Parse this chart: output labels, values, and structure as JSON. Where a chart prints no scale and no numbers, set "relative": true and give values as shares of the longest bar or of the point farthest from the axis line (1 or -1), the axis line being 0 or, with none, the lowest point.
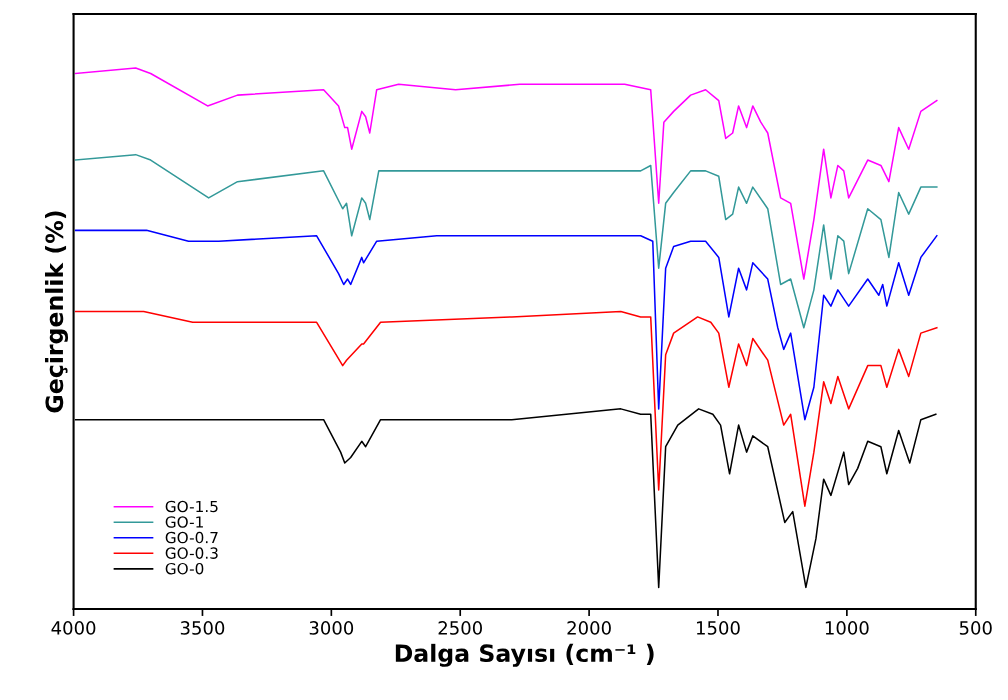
{
  "chart_data": {
    "type": "line",
    "xlabel": "Dalga Sayısı (cm⁻¹ )",
    "ylabel": "Geçirgenlik (%)",
    "relative": true,
    "tick_labels": "x",
    "xlim": [
      4000,
      500
    ],
    "xticks": [
      4000,
      3500,
      3000,
      2500,
      2000,
      1500,
      1000,
      500
    ],
    "legend": "bottom left",
    "grid": false,
    "marker": "none",
    "line_style": "solid",
    "series": [
      {
        "name": "GO-1.5",
        "color": "#ff00ff",
        "x": [
          3992,
          3759,
          3701,
          3480,
          3364,
          3030,
          2972,
          2948,
          2937,
          2921,
          2882,
          2867,
          2851,
          2824,
          2739,
          2518,
          2269,
          1862,
          1761,
          1730,
          1710,
          1672,
          1606,
          1548,
          1497,
          1470,
          1443,
          1420,
          1389,
          1365,
          1334,
          1307,
          1257,
          1218,
          1167,
          1128,
          1090,
          1062,
          1035,
          1012,
          993,
          919,
          868,
          837,
          799,
          760,
          713,
          651
        ],
        "values": [
          0.99,
          1.0,
          0.99,
          0.93,
          0.95,
          0.96,
          0.93,
          0.89,
          0.89,
          0.85,
          0.92,
          0.91,
          0.88,
          0.96,
          0.97,
          0.96,
          0.97,
          0.97,
          0.96,
          0.75,
          0.9,
          0.92,
          0.95,
          0.96,
          0.94,
          0.87,
          0.88,
          0.93,
          0.89,
          0.93,
          0.9,
          0.88,
          0.76,
          0.75,
          0.61,
          0.72,
          0.85,
          0.76,
          0.82,
          0.81,
          0.76,
          0.83,
          0.82,
          0.79,
          0.89,
          0.85,
          0.92,
          0.94
        ]
      },
      {
        "name": "GO-1",
        "color": "#339999",
        "x": [
          3992,
          3759,
          3701,
          3476,
          3364,
          3030,
          2956,
          2941,
          2921,
          2882,
          2867,
          2851,
          2816,
          2518,
          1800,
          1761,
          1730,
          1703,
          1672,
          1606,
          1548,
          1497,
          1470,
          1443,
          1420,
          1389,
          1365,
          1307,
          1257,
          1218,
          1167,
          1128,
          1090,
          1062,
          1035,
          1012,
          993,
          919,
          868,
          837,
          799,
          760,
          713,
          651
        ],
        "values": [
          0.83,
          0.84,
          0.83,
          0.76,
          0.79,
          0.81,
          0.74,
          0.75,
          0.69,
          0.76,
          0.75,
          0.72,
          0.81,
          0.81,
          0.81,
          0.82,
          0.63,
          0.75,
          0.77,
          0.81,
          0.81,
          0.8,
          0.72,
          0.73,
          0.78,
          0.75,
          0.78,
          0.74,
          0.6,
          0.61,
          0.52,
          0.59,
          0.71,
          0.61,
          0.69,
          0.68,
          0.62,
          0.74,
          0.72,
          0.65,
          0.77,
          0.73,
          0.78,
          0.78
        ]
      },
      {
        "name": "GO-0.7",
        "color": "#0000ff",
        "x": [
          3992,
          3717,
          3554,
          3437,
          3057,
          2972,
          2952,
          2937,
          2925,
          2882,
          2875,
          2824,
          2591,
          2300,
          1862,
          1800,
          1753,
          1730,
          1703,
          1672,
          1606,
          1548,
          1497,
          1458,
          1420,
          1389,
          1365,
          1307,
          1268,
          1245,
          1218,
          1163,
          1128,
          1090,
          1062,
          1035,
          993,
          919,
          876,
          861,
          845,
          799,
          760,
          713,
          651
        ],
        "values": [
          0.7,
          0.7,
          0.68,
          0.68,
          0.69,
          0.62,
          0.6,
          0.61,
          0.6,
          0.65,
          0.64,
          0.68,
          0.69,
          0.69,
          0.69,
          0.69,
          0.68,
          0.37,
          0.63,
          0.67,
          0.68,
          0.68,
          0.65,
          0.54,
          0.63,
          0.59,
          0.64,
          0.61,
          0.52,
          0.48,
          0.51,
          0.35,
          0.41,
          0.58,
          0.56,
          0.59,
          0.56,
          0.61,
          0.58,
          0.6,
          0.56,
          0.64,
          0.58,
          0.65,
          0.69
        ]
      },
      {
        "name": "GO-0.3",
        "color": "#ff0000",
        "x": [
          3992,
          3728,
          3538,
          3422,
          3057,
          2956,
          2941,
          2882,
          2875,
          2809,
          2300,
          1877,
          1800,
          1761,
          1730,
          1703,
          1672,
          1579,
          1528,
          1497,
          1458,
          1420,
          1389,
          1365,
          1307,
          1245,
          1218,
          1163,
          1128,
          1090,
          1062,
          1035,
          993,
          919,
          868,
          845,
          799,
          760,
          713,
          651
        ],
        "values": [
          0.55,
          0.55,
          0.53,
          0.53,
          0.53,
          0.45,
          0.46,
          0.49,
          0.49,
          0.53,
          0.54,
          0.55,
          0.54,
          0.54,
          0.22,
          0.47,
          0.51,
          0.54,
          0.53,
          0.51,
          0.41,
          0.49,
          0.45,
          0.5,
          0.46,
          0.34,
          0.36,
          0.19,
          0.29,
          0.42,
          0.38,
          0.43,
          0.37,
          0.45,
          0.45,
          0.41,
          0.48,
          0.43,
          0.51,
          0.52
        ]
      },
      {
        "name": "GO-0",
        "color": "#000000",
        "x": [
          3992,
          3119,
          3030,
          2964,
          2948,
          2925,
          2882,
          2867,
          2809,
          2300,
          1877,
          1800,
          1761,
          1730,
          1703,
          1656,
          1575,
          1520,
          1490,
          1455,
          1420,
          1389,
          1365,
          1307,
          1241,
          1210,
          1159,
          1120,
          1090,
          1062,
          1012,
          993,
          958,
          919,
          868,
          845,
          799,
          756,
          713,
          655
        ],
        "values": [
          0.35,
          0.35,
          0.35,
          0.29,
          0.27,
          0.28,
          0.31,
          0.3,
          0.35,
          0.35,
          0.37,
          0.36,
          0.36,
          0.04,
          0.3,
          0.34,
          0.37,
          0.36,
          0.34,
          0.25,
          0.34,
          0.29,
          0.32,
          0.3,
          0.16,
          0.18,
          0.04,
          0.13,
          0.24,
          0.21,
          0.29,
          0.23,
          0.26,
          0.31,
          0.3,
          0.25,
          0.33,
          0.27,
          0.35,
          0.36
        ]
      }
    ]
  }
}
